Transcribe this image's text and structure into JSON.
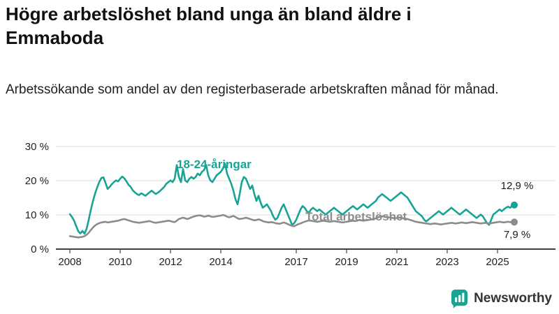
{
  "header": {
    "title": "Högre arbetslöshet bland unga än bland äldre i Emmaboda",
    "subtitle": "Arbetssökande som andel av den registerbaserade arbetskraften månad för månad."
  },
  "colors": {
    "youth": "#17a495",
    "total": "#8c8c8c",
    "grid": "#dcdcdc",
    "axis": "#000000",
    "text": "#222222"
  },
  "chart_data": {
    "type": "line",
    "title": "Högre arbetslöshet bland unga än bland äldre i Emmaboda",
    "xlabel": "",
    "ylabel": "",
    "frequency": "monthly",
    "x_start_year": 2008,
    "x_start_month": 1,
    "xlim": [
      2008,
      2026
    ],
    "ylim": [
      0,
      30
    ],
    "grid": "horizontal",
    "legend": "inline-labels",
    "yticks": [
      {
        "v": 0,
        "label": "0 %"
      },
      {
        "v": 10,
        "label": "10 %"
      },
      {
        "v": 20,
        "label": "20 %"
      },
      {
        "v": 30,
        "label": "30 %"
      }
    ],
    "xticks": [
      {
        "v": 2008,
        "label": "2008"
      },
      {
        "v": 2010,
        "label": "2010"
      },
      {
        "v": 2012,
        "label": "2012"
      },
      {
        "v": 2014,
        "label": "2014"
      },
      {
        "v": 2017,
        "label": "2017"
      },
      {
        "v": 2019,
        "label": "2019"
      },
      {
        "v": 2021,
        "label": "2021"
      },
      {
        "v": 2023,
        "label": "2023"
      },
      {
        "v": 2025,
        "label": "2025"
      }
    ],
    "series": [
      {
        "name": "18-24-åringar",
        "color": "#17a495",
        "end_label": "12,9 %",
        "end_value": 12.9,
        "values": [
          10.2,
          9.4,
          8.3,
          6.8,
          5.2,
          4.6,
          5.3,
          4.5,
          6.0,
          8.6,
          11.5,
          14.0,
          16.2,
          18.0,
          19.6,
          20.8,
          21.0,
          19.4,
          17.6,
          18.2,
          19.0,
          19.6,
          20.1,
          19.8,
          20.6,
          21.2,
          20.7,
          19.8,
          18.8,
          18.2,
          17.2,
          16.6,
          16.1,
          15.8,
          16.3,
          16.0,
          15.6,
          16.1,
          16.6,
          17.1,
          16.6,
          16.1,
          16.5,
          17.0,
          17.6,
          18.2,
          19.1,
          19.6,
          20.1,
          19.6,
          20.6,
          24.6,
          21.1,
          19.6,
          23.4,
          20.1,
          19.6,
          20.6,
          21.1,
          20.6,
          21.1,
          22.1,
          21.6,
          22.6,
          23.1,
          24.6,
          21.6,
          20.1,
          19.6,
          20.6,
          21.6,
          22.1,
          22.6,
          23.6,
          25.0,
          22.1,
          20.6,
          19.1,
          17.1,
          14.6,
          13.1,
          16.1,
          19.6,
          21.1,
          20.6,
          19.1,
          17.6,
          18.6,
          16.1,
          14.1,
          15.6,
          13.6,
          12.1,
          12.6,
          13.1,
          12.1,
          11.1,
          9.6,
          8.6,
          9.1,
          10.6,
          12.1,
          13.1,
          11.6,
          10.1,
          8.6,
          7.1,
          7.6,
          8.6,
          10.1,
          11.6,
          12.6,
          12.1,
          11.1,
          10.6,
          11.6,
          12.1,
          11.6,
          11.1,
          11.6,
          11.1,
          10.6,
          10.1,
          10.6,
          11.1,
          11.6,
          12.1,
          11.6,
          11.1,
          10.6,
          10.1,
          10.6,
          11.1,
          11.6,
          12.1,
          12.6,
          12.1,
          11.6,
          12.1,
          12.6,
          13.1,
          12.6,
          12.1,
          12.6,
          13.1,
          13.6,
          14.1,
          15.1,
          15.6,
          16.1,
          15.6,
          15.1,
          14.6,
          14.1,
          14.6,
          15.1,
          15.6,
          16.1,
          16.6,
          16.1,
          15.6,
          15.1,
          14.1,
          13.1,
          12.1,
          11.1,
          10.6,
          10.1,
          9.6,
          8.6,
          8.1,
          8.6,
          9.1,
          9.6,
          10.1,
          10.6,
          11.1,
          10.6,
          10.1,
          10.6,
          11.1,
          11.6,
          12.1,
          11.6,
          11.1,
          10.6,
          10.1,
          10.6,
          11.1,
          11.6,
          11.1,
          10.6,
          10.1,
          9.6,
          9.1,
          9.6,
          10.1,
          9.6,
          8.6,
          7.6,
          7.1,
          8.6,
          10.1,
          10.6,
          11.1,
          11.6,
          11.1,
          11.6,
          12.1,
          12.4,
          12.1,
          12.6,
          12.9
        ]
      },
      {
        "name": "Total arbetslöshet",
        "color": "#8c8c8c",
        "end_label": "7,9 %",
        "end_value": 7.9,
        "values": [
          3.8,
          3.7,
          3.6,
          3.5,
          3.4,
          3.5,
          3.6,
          3.8,
          4.2,
          4.8,
          5.6,
          6.3,
          6.9,
          7.3,
          7.6,
          7.8,
          7.9,
          8.0,
          7.8,
          7.9,
          8.0,
          8.1,
          8.2,
          8.3,
          8.5,
          8.7,
          8.8,
          8.6,
          8.4,
          8.2,
          8.0,
          7.9,
          7.8,
          7.7,
          7.8,
          7.9,
          8.0,
          8.1,
          8.2,
          8.0,
          7.8,
          7.7,
          7.8,
          7.9,
          8.0,
          8.1,
          8.2,
          8.3,
          8.2,
          8.0,
          7.9,
          8.3,
          8.8,
          9.0,
          9.2,
          9.0,
          8.8,
          9.0,
          9.3,
          9.5,
          9.7,
          9.8,
          9.9,
          9.7,
          9.5,
          9.6,
          9.8,
          9.6,
          9.4,
          9.5,
          9.6,
          9.7,
          9.8,
          10.0,
          9.8,
          9.5,
          9.3,
          9.5,
          9.7,
          9.4,
          9.0,
          8.8,
          8.9,
          9.0,
          9.2,
          9.0,
          8.8,
          8.6,
          8.4,
          8.5,
          8.7,
          8.5,
          8.2,
          8.0,
          7.9,
          7.8,
          7.9,
          7.8,
          7.6,
          7.5,
          7.4,
          7.6,
          7.8,
          7.6,
          7.3,
          7.0,
          6.8,
          6.7,
          7.0,
          7.3,
          7.5,
          7.8,
          8.0,
          8.2,
          8.4,
          8.3,
          8.2,
          8.1,
          8.0,
          8.1,
          8.2,
          8.3,
          8.2,
          8.1,
          8.0,
          8.1,
          8.2,
          8.1,
          8.0,
          7.9,
          7.8,
          7.9,
          8.0,
          8.1,
          8.2,
          8.3,
          8.2,
          8.3,
          8.5,
          8.4,
          8.3,
          8.4,
          8.5,
          8.6,
          8.7,
          8.8,
          9.0,
          9.3,
          9.5,
          9.6,
          9.5,
          9.4,
          9.3,
          9.2,
          9.1,
          9.0,
          9.1,
          9.2,
          9.1,
          9.0,
          8.9,
          8.8,
          8.6,
          8.4,
          8.2,
          8.0,
          7.9,
          7.8,
          7.7,
          7.6,
          7.5,
          7.4,
          7.3,
          7.4,
          7.5,
          7.4,
          7.3,
          7.2,
          7.3,
          7.4,
          7.5,
          7.6,
          7.7,
          7.6,
          7.5,
          7.6,
          7.7,
          7.8,
          7.7,
          7.6,
          7.7,
          7.8,
          7.9,
          7.8,
          7.7,
          7.6,
          7.5,
          7.6,
          7.7,
          7.6,
          7.5,
          7.6,
          7.7,
          7.8,
          7.9,
          8.0,
          7.9,
          7.8,
          7.9,
          8.0,
          7.9,
          7.8,
          7.9
        ]
      }
    ]
  },
  "branding": {
    "name": "Newsworthy"
  }
}
